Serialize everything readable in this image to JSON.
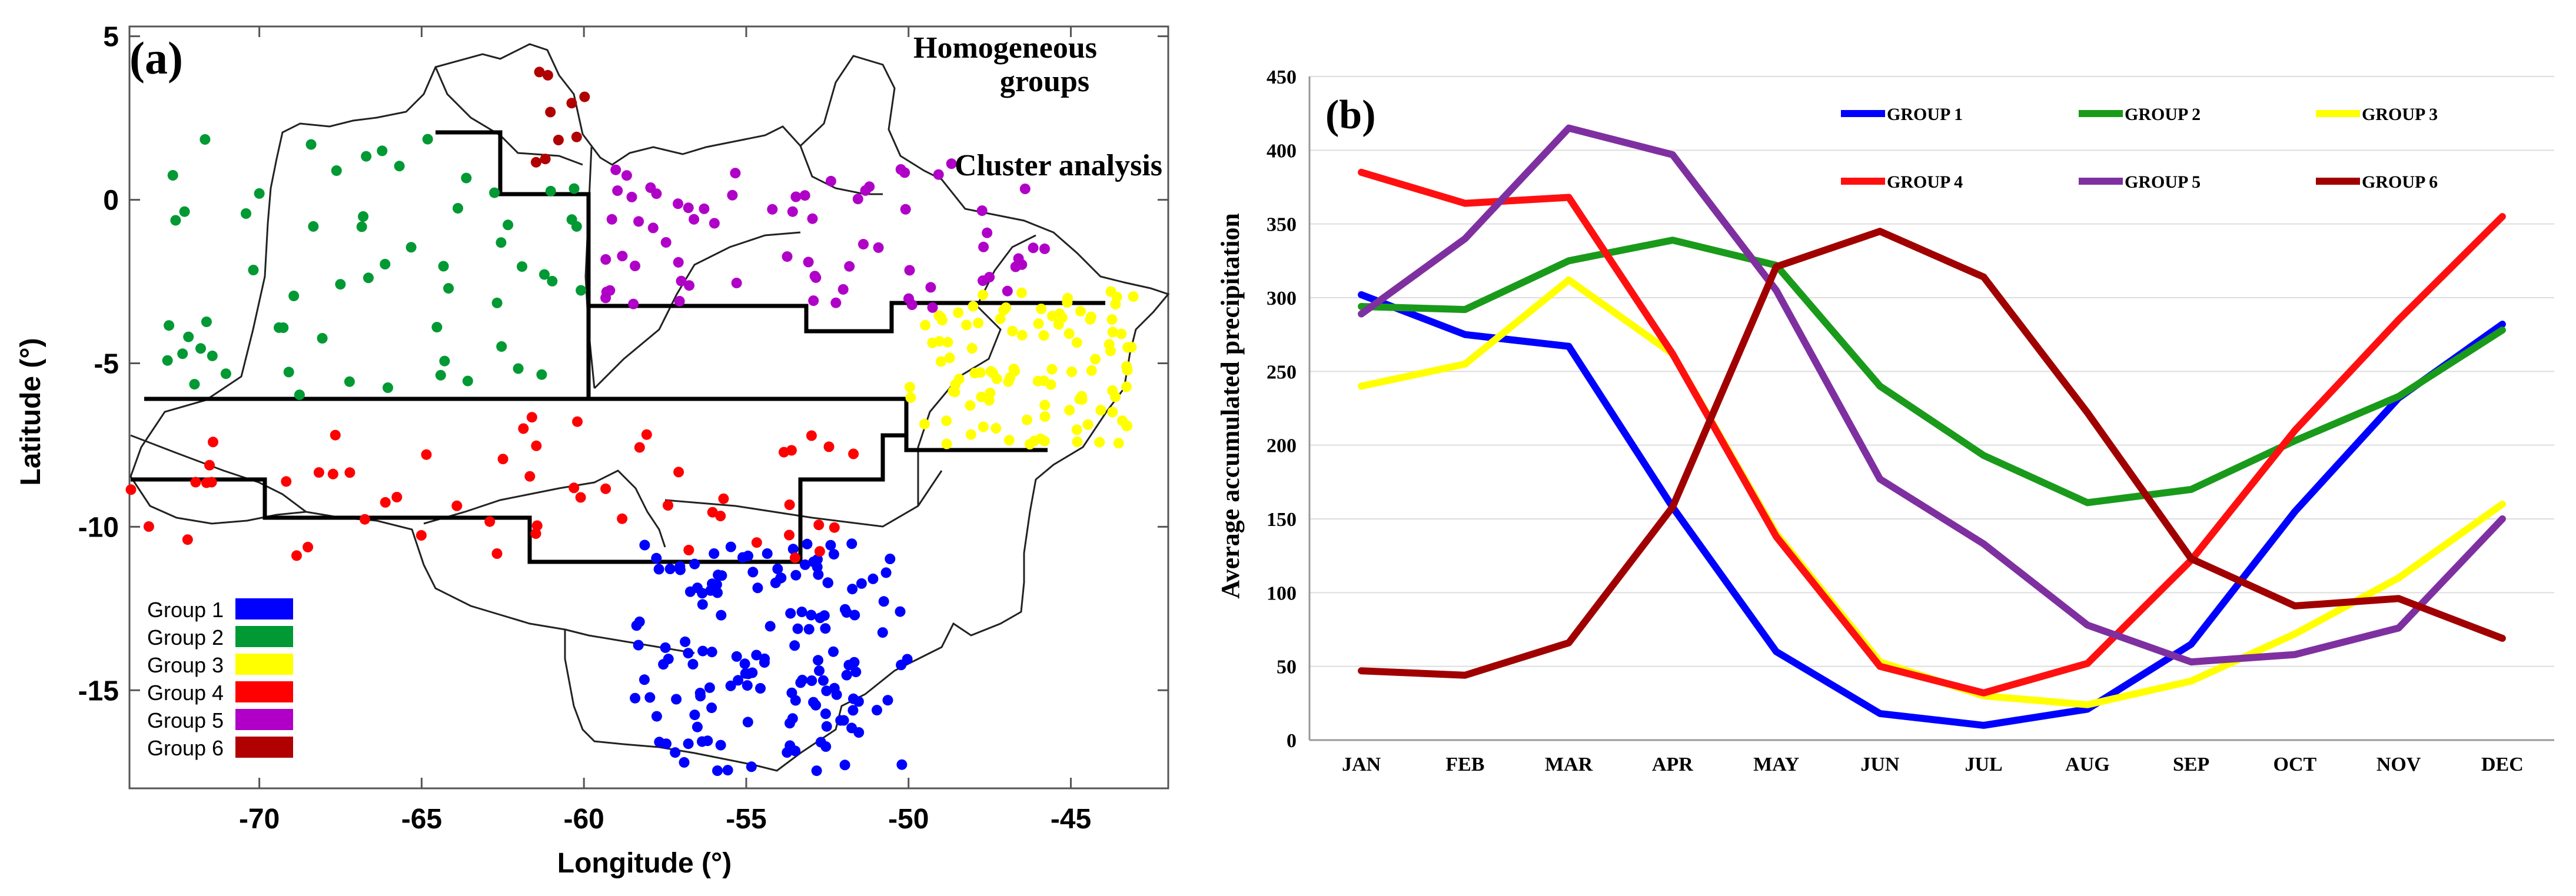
{
  "panel_a": {
    "panel_label": "(a)",
    "title_line1": "Homogeneous",
    "title_line2": "groups",
    "subtitle": "Cluster analysis",
    "xlabel": "Longitude (°)",
    "ylabel": "Latitude (°)",
    "xlim": [
      -74,
      -42
    ],
    "ylim": [
      -18,
      5.3
    ],
    "x_ticks": [
      -70,
      -65,
      -60,
      -55,
      -50,
      -45
    ],
    "y_ticks": [
      5,
      0,
      -5,
      -10,
      -15
    ],
    "legend": [
      {
        "label": "Group 1",
        "color": "#0000ff"
      },
      {
        "label": "Group 2",
        "color": "#009933"
      },
      {
        "label": "Group 3",
        "color": "#ffff00"
      },
      {
        "label": "Group 4",
        "color": "#ff0000"
      },
      {
        "label": "Group 5",
        "color": "#b000c8"
      },
      {
        "label": "Group 6",
        "color": "#b00000"
      }
    ],
    "station_groups": [
      {
        "group": "Group 1",
        "color": "#0000ff",
        "count": 150,
        "lon_range": [
          -58.5,
          -50
        ],
        "lat_range": [
          -17.5,
          -10.5
        ]
      },
      {
        "group": "Group 2",
        "color": "#009933",
        "count": 60,
        "lon_range": [
          -73,
          -60
        ],
        "lat_range": [
          -6,
          2
        ]
      },
      {
        "group": "Group 3",
        "color": "#ffff00",
        "count": 105,
        "lon_range": [
          -50,
          -43
        ],
        "lat_range": [
          -7.5,
          -2.8
        ]
      },
      {
        "group": "Group 4",
        "color": "#ff0000",
        "count": 55,
        "lon_range": [
          -74,
          -51
        ],
        "lat_range": [
          -11,
          -6.5
        ]
      },
      {
        "group": "Group 5",
        "color": "#b000c8",
        "count": 70,
        "lon_range": [
          -59.5,
          -45.5
        ],
        "lat_range": [
          -3.3,
          1.3
        ]
      },
      {
        "group": "Group 6",
        "color": "#b00000",
        "count": 9,
        "lon_range": [
          -61.5,
          -59.8
        ],
        "lat_range": [
          1,
          4.3
        ]
      }
    ]
  },
  "chart_data": {
    "type": "line",
    "panel_label": "(b)",
    "title": "",
    "xlabel": "",
    "ylabel": "Average accumulated precipitation",
    "categories": [
      "JAN",
      "FEB",
      "MAR",
      "APR",
      "MAY",
      "JUN",
      "JUL",
      "AUG",
      "SEP",
      "OCT",
      "NOV",
      "DEC"
    ],
    "ylim": [
      0,
      450
    ],
    "y_ticks": [
      0,
      50,
      100,
      150,
      200,
      250,
      300,
      350,
      400,
      450
    ],
    "grid": true,
    "legend_position": "top",
    "series": [
      {
        "name": "GROUP 1",
        "color": "#0000ff",
        "values": [
          302,
          275,
          267,
          158,
          60,
          18,
          10,
          21,
          65,
          155,
          232,
          282
        ]
      },
      {
        "name": "GROUP 2",
        "color": "#1a9a1a",
        "values": [
          294,
          292,
          325,
          339,
          322,
          240,
          193,
          161,
          170,
          203,
          233,
          278
        ]
      },
      {
        "name": "GROUP 3",
        "color": "#ffff00",
        "values": [
          240,
          255,
          312,
          262,
          140,
          53,
          30,
          24,
          40,
          72,
          110,
          160
        ]
      },
      {
        "name": "GROUP 4",
        "color": "#ff1010",
        "values": [
          385,
          364,
          368,
          262,
          138,
          50,
          32,
          52,
          122,
          210,
          285,
          355
        ]
      },
      {
        "name": "GROUP 5",
        "color": "#7f30a0",
        "values": [
          289,
          340,
          415,
          397,
          305,
          177,
          133,
          78,
          53,
          58,
          76,
          150
        ]
      },
      {
        "name": "GROUP 6",
        "color": "#a00000",
        "values": [
          47,
          44,
          66,
          158,
          321,
          345,
          314,
          222,
          123,
          91,
          96,
          69
        ]
      }
    ]
  }
}
